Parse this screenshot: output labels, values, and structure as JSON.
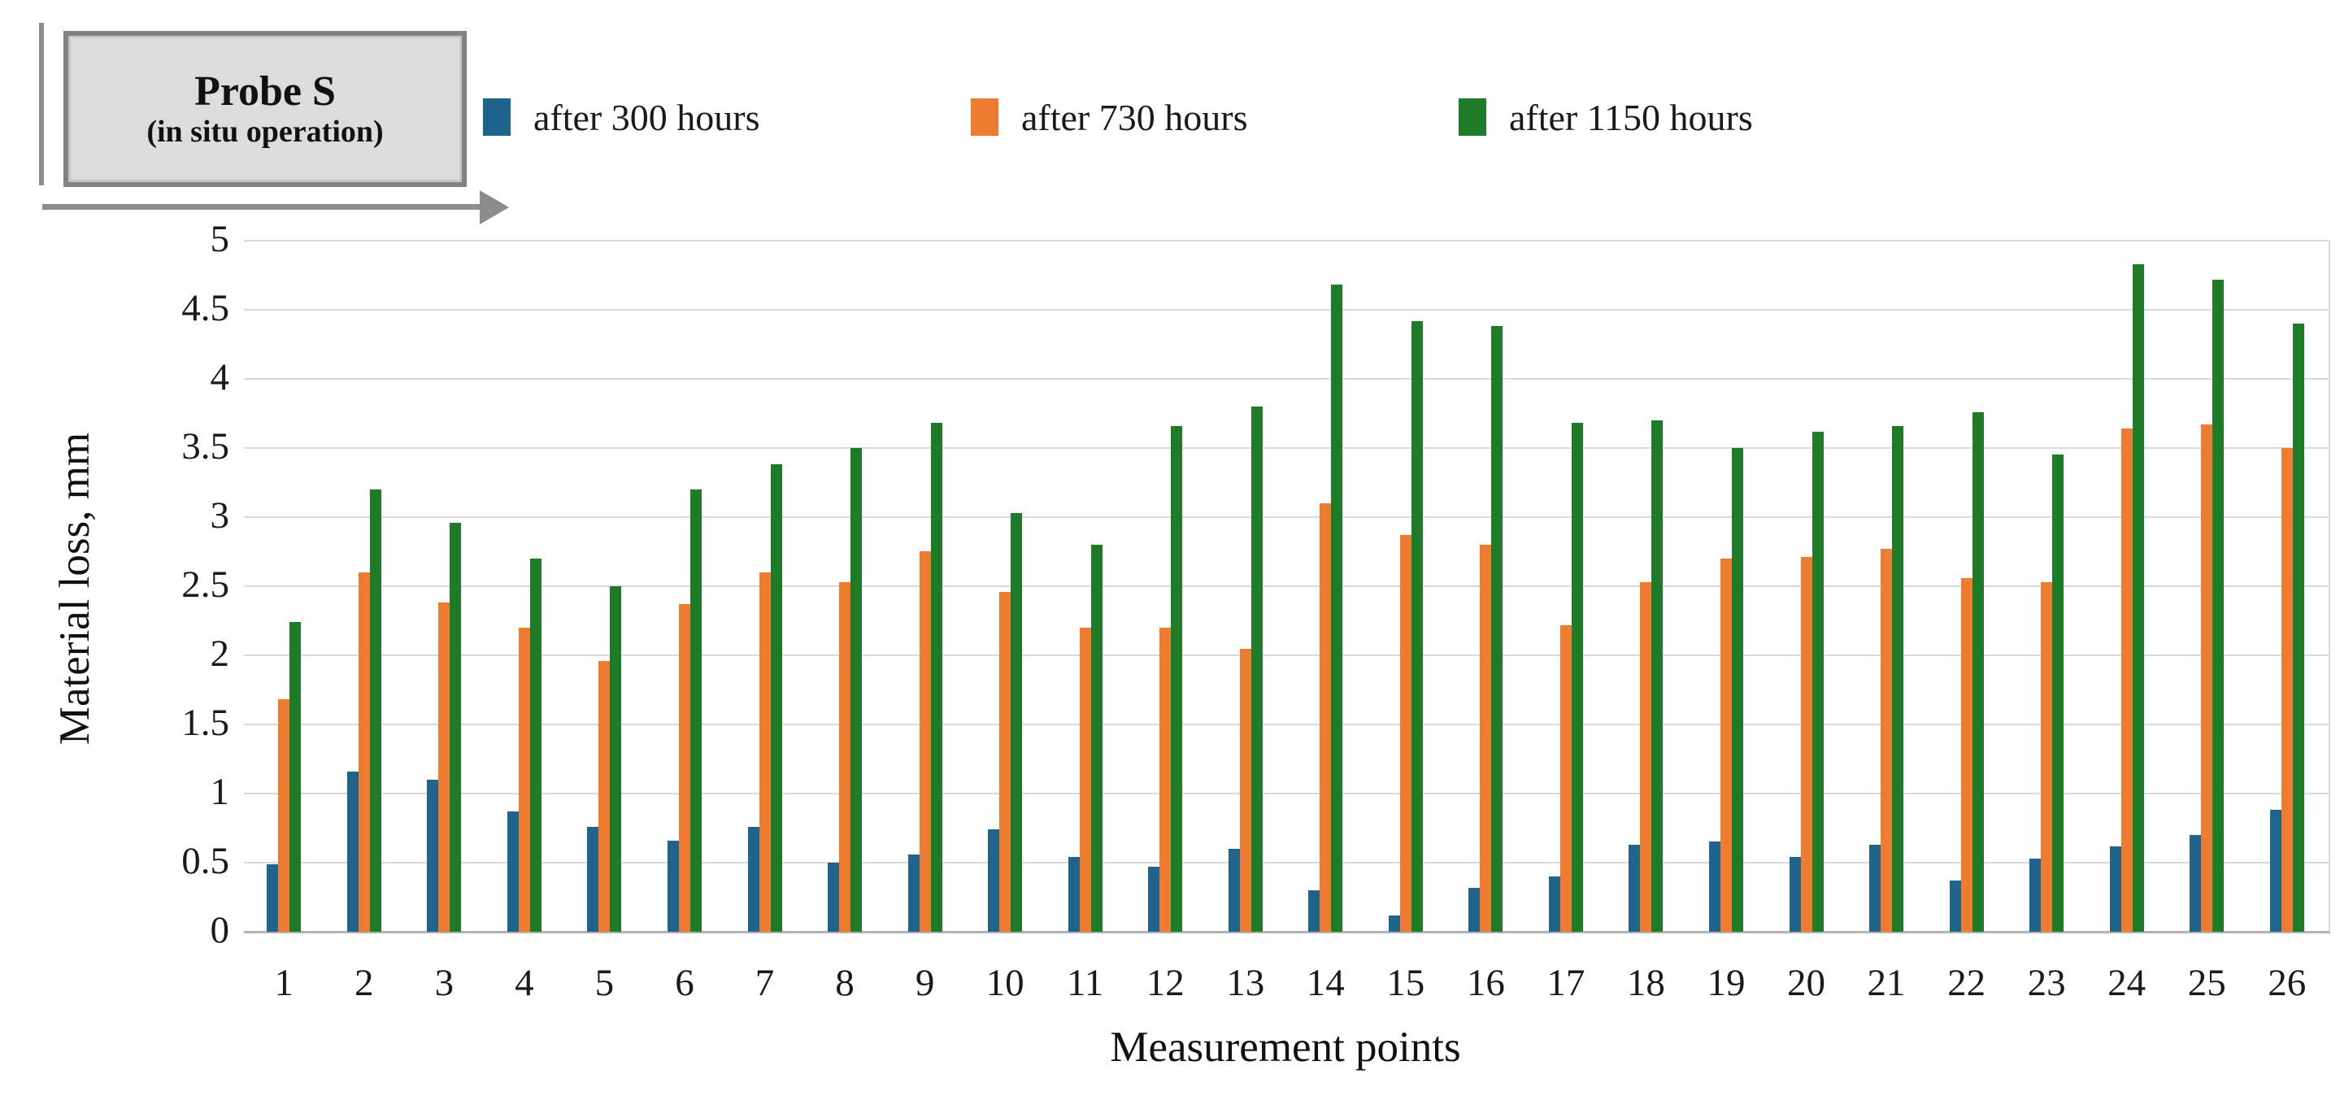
{
  "callout": {
    "title": "Probe S",
    "subtitle": "(in situ operation)"
  },
  "legend": {
    "items": [
      {
        "label": "after 300 hours",
        "color": "#20648c"
      },
      {
        "label": "after 730 hours",
        "color": "#ed7c30"
      },
      {
        "label": "after 1150 hours",
        "color": "#1e7b28"
      }
    ]
  },
  "axes": {
    "y_title": "Material loss, mm",
    "x_title": "Measurement points",
    "y_ticks": [
      "0",
      "0.5",
      "1",
      "1.5",
      "2",
      "2.5",
      "3",
      "3.5",
      "4",
      "4.5",
      "5"
    ]
  },
  "chart_data": {
    "type": "bar",
    "title": "Probe S (in situ operation)",
    "xlabel": "Measurement points",
    "ylabel": "Material loss, mm",
    "ylim": [
      0,
      5
    ],
    "y_tick_step": 0.5,
    "grid": true,
    "legend_position": "top",
    "categories": [
      "1",
      "2",
      "3",
      "4",
      "5",
      "6",
      "7",
      "8",
      "9",
      "10",
      "11",
      "12",
      "13",
      "14",
      "15",
      "16",
      "17",
      "18",
      "19",
      "20",
      "21",
      "22",
      "23",
      "24",
      "25",
      "26"
    ],
    "series": [
      {
        "name": "after 300 hours",
        "color": "#20648c",
        "values": [
          0.49,
          1.16,
          1.1,
          0.87,
          0.76,
          0.66,
          0.76,
          0.5,
          0.56,
          0.74,
          0.54,
          0.47,
          0.6,
          0.3,
          0.12,
          0.32,
          0.4,
          0.63,
          0.65,
          0.54,
          0.63,
          0.37,
          0.53,
          0.62,
          0.7,
          0.88
        ]
      },
      {
        "name": "after 730 hours",
        "color": "#ed7c30",
        "values": [
          1.68,
          2.6,
          2.38,
          2.2,
          1.96,
          2.37,
          2.6,
          2.53,
          2.75,
          2.46,
          2.2,
          2.2,
          2.05,
          3.1,
          2.87,
          2.8,
          2.22,
          2.53,
          2.7,
          2.71,
          2.77,
          2.56,
          2.53,
          3.64,
          3.67,
          3.5
        ]
      },
      {
        "name": "after 1150 hours",
        "color": "#1e7b28",
        "values": [
          2.24,
          3.2,
          2.96,
          2.7,
          2.5,
          3.2,
          3.38,
          3.5,
          3.68,
          3.03,
          2.8,
          3.66,
          3.8,
          4.68,
          4.42,
          4.38,
          3.68,
          3.7,
          3.5,
          3.62,
          3.66,
          3.76,
          3.45,
          4.83,
          4.72,
          4.4
        ]
      }
    ]
  }
}
